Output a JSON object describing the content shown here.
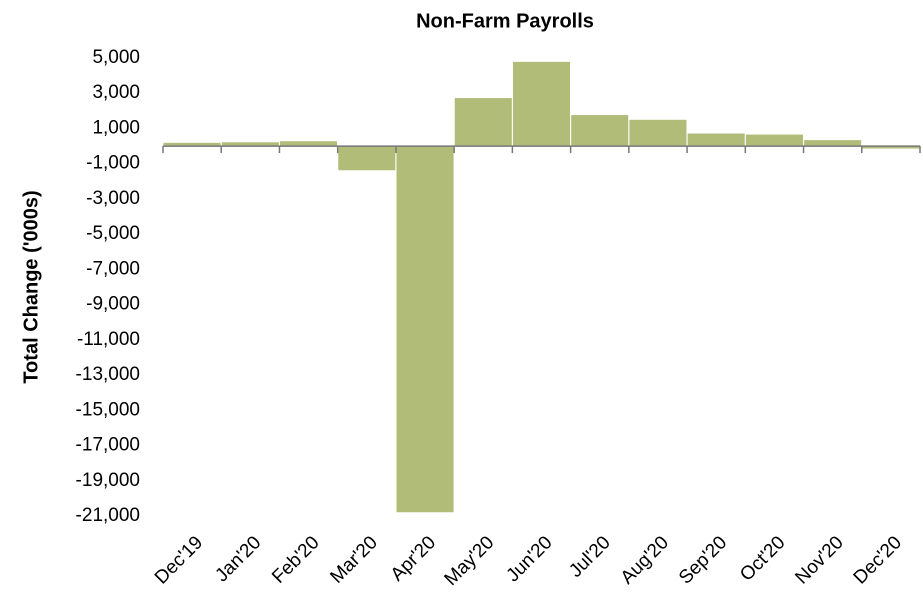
{
  "chart_data": {
    "type": "bar",
    "title": "Non-Farm Payrolls",
    "y_label": "Total Change ('000s)",
    "categories": [
      "Dec'19",
      "Jan'20",
      "Feb'20",
      "Mar'20",
      "Apr'20",
      "May'20",
      "Jun'20",
      "Jul'20",
      "Aug'20",
      "Sep'20",
      "Oct'20",
      "Nov'20",
      "Dec'20"
    ],
    "values": [
      184,
      214,
      275,
      -1373,
      -20787,
      2725,
      4781,
      1761,
      1493,
      711,
      654,
      336,
      -140
    ],
    "color": "#b0bc78",
    "ylim": [
      -21000,
      5000
    ],
    "yticks": [
      {
        "value": 5000,
        "label": "5,000"
      },
      {
        "value": 3000,
        "label": "3,000"
      },
      {
        "value": 1000,
        "label": "1,000"
      },
      {
        "value": -1000,
        "label": "-1,000"
      },
      {
        "value": -3000,
        "label": "-3,000"
      },
      {
        "value": -5000,
        "label": "-5,000"
      },
      {
        "value": -7000,
        "label": "-7,000"
      },
      {
        "value": -9000,
        "label": "-9,000"
      },
      {
        "value": -11000,
        "label": "-11,000"
      },
      {
        "value": -13000,
        "label": "-13,000"
      },
      {
        "value": -15000,
        "label": "-15,000"
      },
      {
        "value": -17000,
        "label": "-17,000"
      },
      {
        "value": -19000,
        "label": "-19,000"
      },
      {
        "value": -21000,
        "label": "-21,000"
      }
    ],
    "grid": false
  }
}
